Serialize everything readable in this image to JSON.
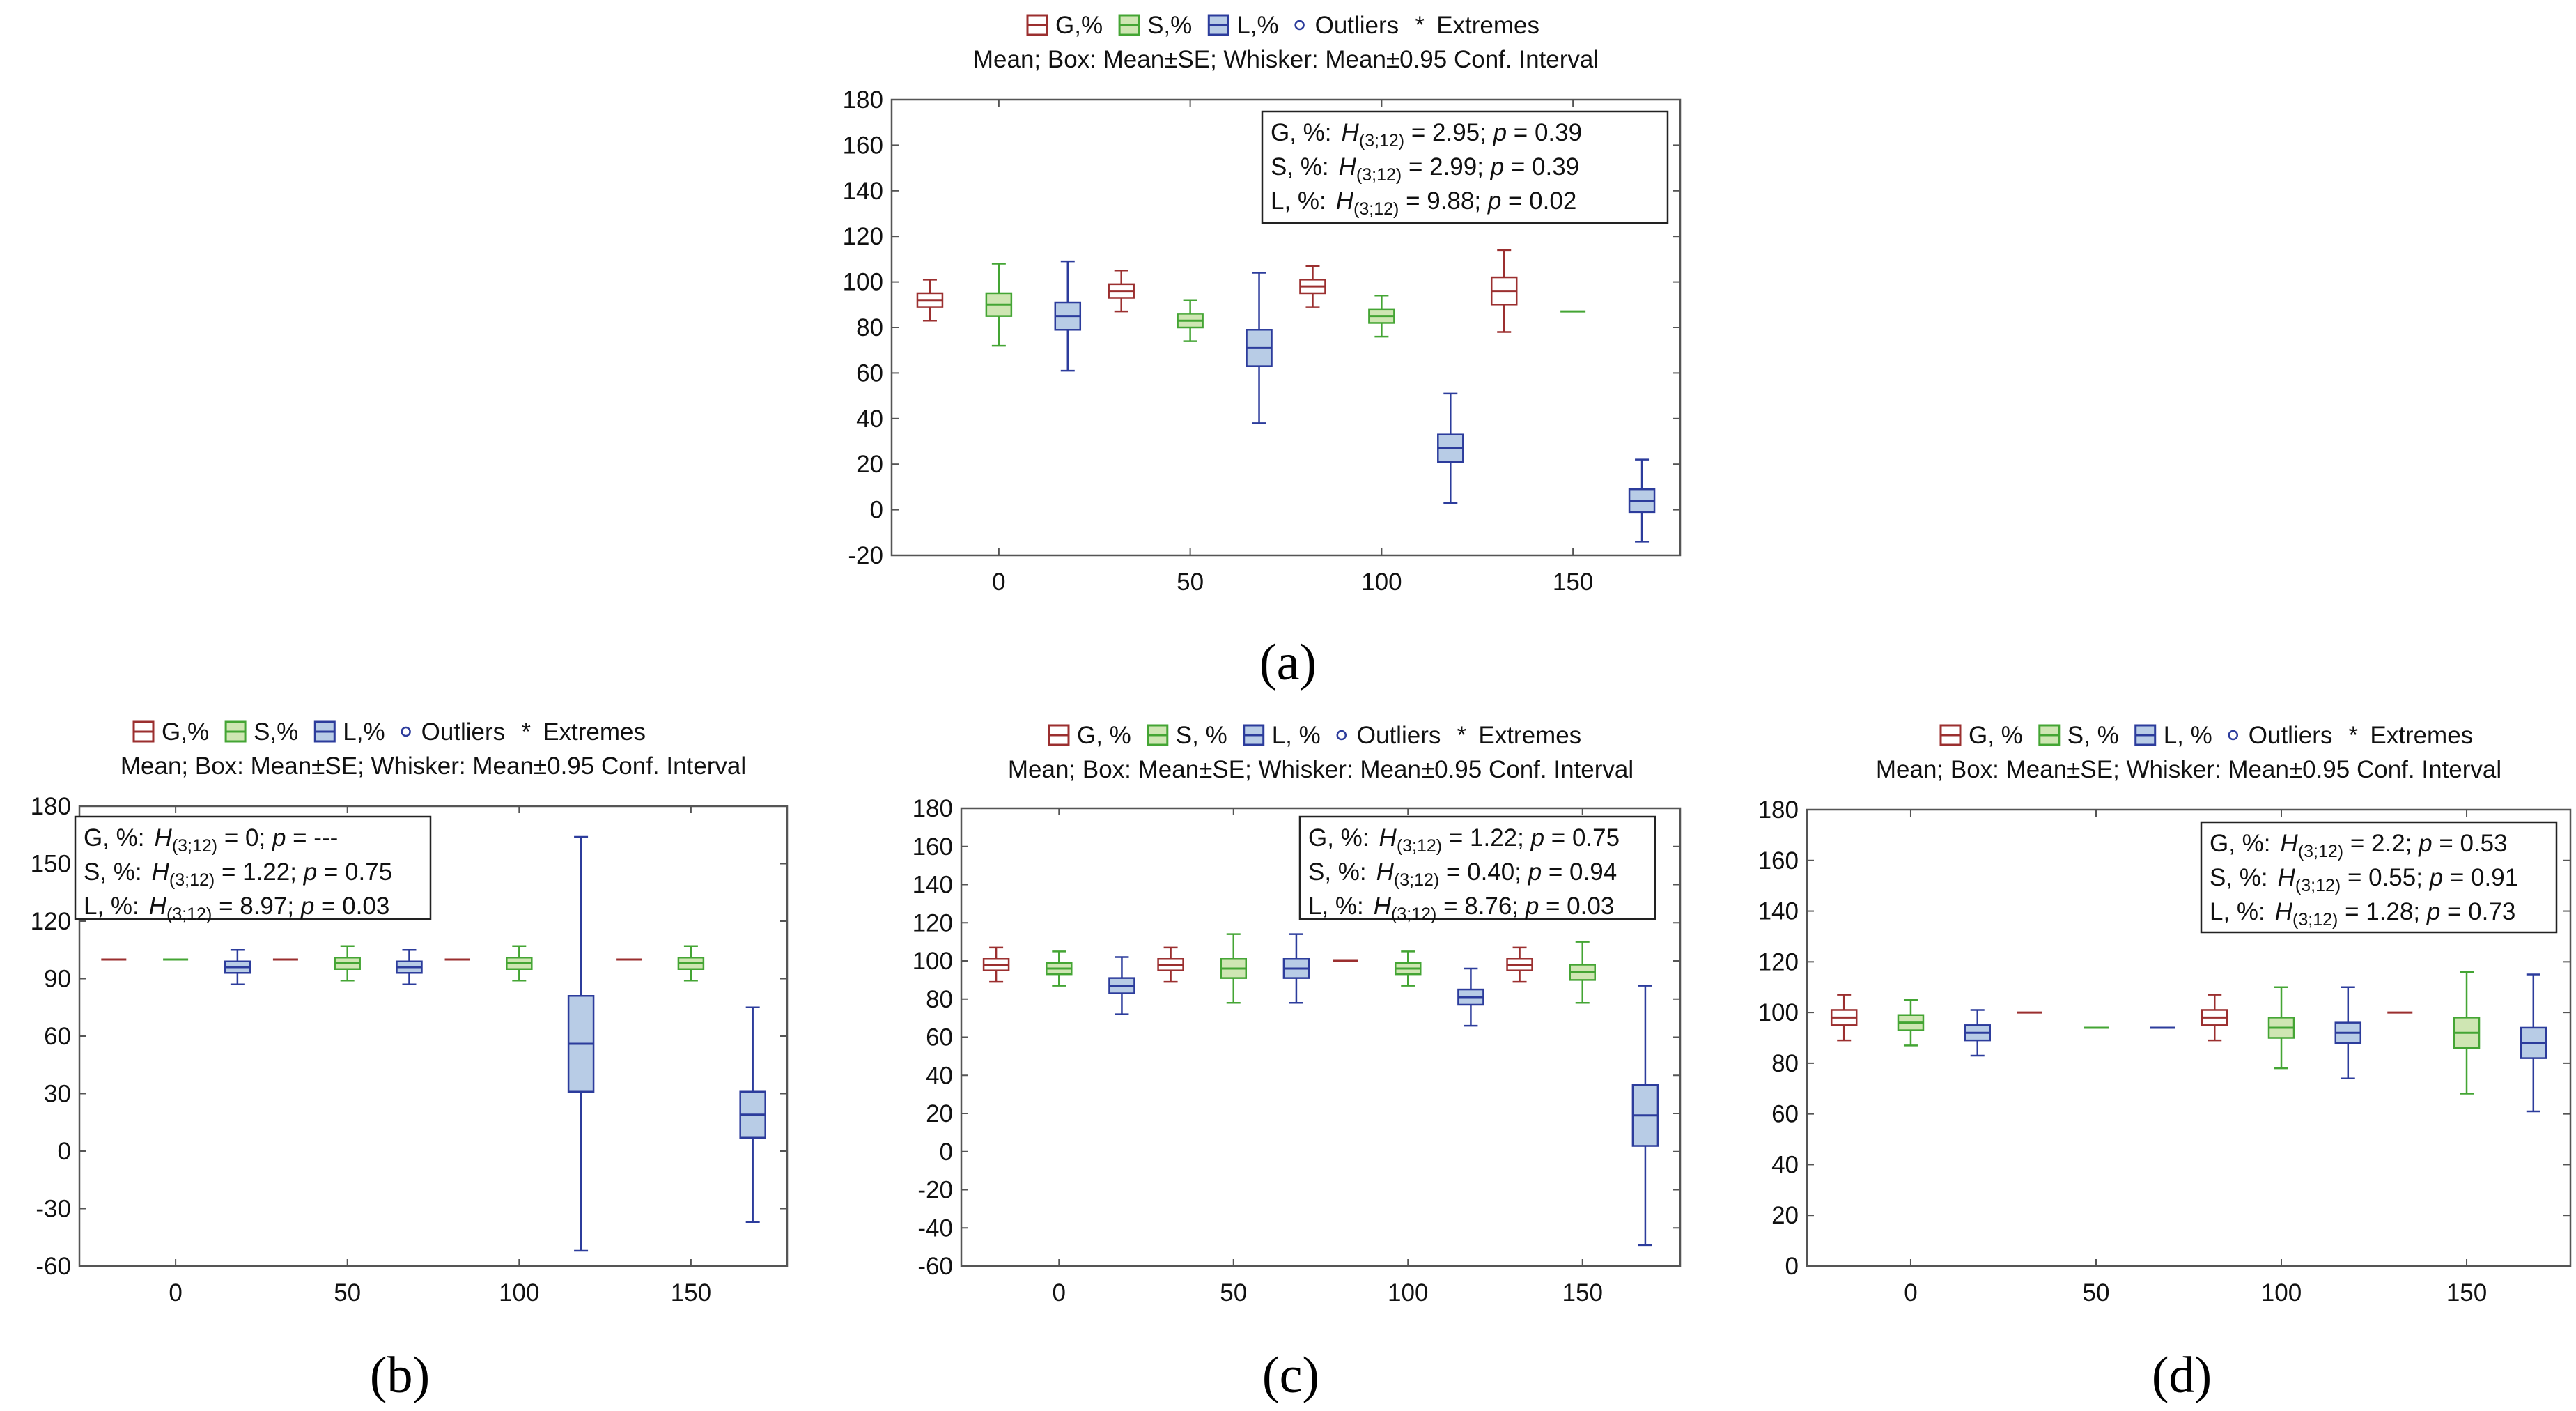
{
  "figure": {
    "labels": [
      "(a)",
      "(b)",
      "(c)",
      "(d)"
    ]
  },
  "colors": {
    "G": {
      "stroke": "#9b2f2f",
      "fill": "#ffffff"
    },
    "S": {
      "stroke": "#44a534",
      "fill": "#cfe6b3"
    },
    "L": {
      "stroke": "#2c3c9c",
      "fill": "#b8cce6"
    }
  },
  "chart_data": [
    {
      "type": "box",
      "panel": "a",
      "legend": [
        "G,%",
        "S,%",
        "L,%",
        "Outliers",
        "Extremes"
      ],
      "subtitle": "Mean; Box: Mean±SE; Whisker: Mean±0.95 Conf. Interval",
      "ylim": [
        -20,
        180
      ],
      "yticks": [
        -20,
        0,
        20,
        40,
        60,
        80,
        100,
        120,
        140,
        160,
        180
      ],
      "xticks": [
        0,
        50,
        100,
        150
      ],
      "stats": [
        {
          "var": "G, %:",
          "h": "H",
          "sub": "(3;12)",
          "hval": " = 2.95; ",
          "p": "p",
          "pval": " = 0.39"
        },
        {
          "var": "S, %:",
          "h": "H",
          "sub": "(3;12)",
          "hval": " = 2.99; ",
          "p": "p",
          "pval": " = 0.39"
        },
        {
          "var": "L, %:",
          "h": "H",
          "sub": "(3;12)",
          "hval": " = 9.88; ",
          "p": "p",
          "pval": " = 0.02"
        }
      ],
      "series": [
        {
          "name": "G,%",
          "boxes": [
            {
              "x": 0,
              "mean": 92,
              "se": 3,
              "ci": 9
            },
            {
              "x": 50,
              "mean": 96,
              "se": 3,
              "ci": 9
            },
            {
              "x": 100,
              "mean": 98,
              "se": 3,
              "ci": 9
            },
            {
              "x": 150,
              "mean": 96,
              "se": 6,
              "ci": 18
            }
          ]
        },
        {
          "name": "S,%",
          "boxes": [
            {
              "x": 0,
              "mean": 90,
              "se": 5,
              "ci": 18
            },
            {
              "x": 50,
              "mean": 83,
              "se": 3,
              "ci": 9
            },
            {
              "x": 100,
              "mean": 85,
              "se": 3,
              "ci": 9
            },
            {
              "x": 150,
              "mean": 87,
              "se": 0,
              "ci": 0
            }
          ]
        },
        {
          "name": "L,%",
          "boxes": [
            {
              "x": 0,
              "mean": 85,
              "se": 6,
              "ci": 24
            },
            {
              "x": 50,
              "mean": 71,
              "se": 8,
              "ci": 33
            },
            {
              "x": 100,
              "mean": 27,
              "se": 6,
              "ci": 24
            },
            {
              "x": 150,
              "mean": 4,
              "se": 5,
              "ci": 18
            }
          ]
        }
      ]
    },
    {
      "type": "box",
      "panel": "b",
      "legend": [
        "G,%",
        "S,%",
        "L,%",
        "Outliers",
        "Extremes"
      ],
      "subtitle": "Mean; Box: Mean±SE; Whisker: Mean±0.95 Conf. Interval",
      "ylim": [
        -60,
        180
      ],
      "yticks": [
        -60,
        -30,
        0,
        30,
        60,
        90,
        120,
        150,
        180
      ],
      "xticks": [
        0,
        50,
        100,
        150
      ],
      "stats": [
        {
          "var": "G, %:",
          "h": "H",
          "sub": "(3;12)",
          "hval": " = 0; ",
          "p": "p",
          "pval": " = ---"
        },
        {
          "var": "S, %:",
          "h": "H",
          "sub": "(3;12)",
          "hval": " = 1.22; ",
          "p": "p",
          "pval": " = 0.75"
        },
        {
          "var": "L, %:",
          "h": "H",
          "sub": "(3;12)",
          "hval": " = 8.97; ",
          "p": "p",
          "pval": " = 0.03"
        }
      ],
      "series": [
        {
          "name": "G,%",
          "boxes": [
            {
              "x": 0,
              "mean": 100,
              "se": 0,
              "ci": 0
            },
            {
              "x": 50,
              "mean": 100,
              "se": 0,
              "ci": 0
            },
            {
              "x": 100,
              "mean": 100,
              "se": 0,
              "ci": 0
            },
            {
              "x": 150,
              "mean": 100,
              "se": 0,
              "ci": 0
            }
          ]
        },
        {
          "name": "S,%",
          "boxes": [
            {
              "x": 0,
              "mean": 100,
              "se": 0,
              "ci": 0
            },
            {
              "x": 50,
              "mean": 98,
              "se": 3,
              "ci": 9
            },
            {
              "x": 100,
              "mean": 98,
              "se": 3,
              "ci": 9
            },
            {
              "x": 150,
              "mean": 98,
              "se": 3,
              "ci": 9
            }
          ]
        },
        {
          "name": "L,%",
          "boxes": [
            {
              "x": 0,
              "mean": 96,
              "se": 3,
              "ci": 9
            },
            {
              "x": 50,
              "mean": 96,
              "se": 3,
              "ci": 9
            },
            {
              "x": 100,
              "mean": 56,
              "se": 25,
              "ci": 108
            },
            {
              "x": 150,
              "mean": 19,
              "se": 12,
              "ci": 56
            }
          ]
        }
      ]
    },
    {
      "type": "box",
      "panel": "c",
      "legend": [
        "G, %",
        "S, %",
        "L, %",
        "Outliers",
        "Extremes"
      ],
      "subtitle": "Mean; Box: Mean±SE; Whisker: Mean±0.95 Conf. Interval",
      "ylim": [
        -60,
        180
      ],
      "yticks": [
        -60,
        -40,
        -20,
        0,
        20,
        40,
        60,
        80,
        100,
        120,
        140,
        160,
        180
      ],
      "xticks": [
        0,
        50,
        100,
        150
      ],
      "stats": [
        {
          "var": "G, %:",
          "h": "H",
          "sub": "(3;12)",
          "hval": " = 1.22; ",
          "p": "p",
          "pval": " = 0.75"
        },
        {
          "var": "S, %:",
          "h": "H",
          "sub": "(3;12)",
          "hval": " = 0.40; ",
          "p": "p",
          "pval": " = 0.94"
        },
        {
          "var": "L, %:",
          "h": "H",
          "sub": "(3;12)",
          "hval": " = 8.76; ",
          "p": "p",
          "pval": " = 0.03"
        }
      ],
      "series": [
        {
          "name": "G, %",
          "boxes": [
            {
              "x": 0,
              "mean": 98,
              "se": 3,
              "ci": 9
            },
            {
              "x": 50,
              "mean": 98,
              "se": 3,
              "ci": 9
            },
            {
              "x": 100,
              "mean": 100,
              "se": 0,
              "ci": 0
            },
            {
              "x": 150,
              "mean": 98,
              "se": 3,
              "ci": 9
            }
          ]
        },
        {
          "name": "S, %",
          "boxes": [
            {
              "x": 0,
              "mean": 96,
              "se": 3,
              "ci": 9
            },
            {
              "x": 50,
              "mean": 96,
              "se": 5,
              "ci": 18
            },
            {
              "x": 100,
              "mean": 96,
              "se": 3,
              "ci": 9
            },
            {
              "x": 150,
              "mean": 94,
              "se": 4,
              "ci": 16
            }
          ]
        },
        {
          "name": "L, %",
          "boxes": [
            {
              "x": 0,
              "mean": 87,
              "se": 4,
              "ci": 15
            },
            {
              "x": 50,
              "mean": 96,
              "se": 5,
              "ci": 18
            },
            {
              "x": 100,
              "mean": 81,
              "se": 4,
              "ci": 15
            },
            {
              "x": 150,
              "mean": 19,
              "se": 16,
              "ci": 68
            }
          ]
        }
      ]
    },
    {
      "type": "box",
      "panel": "d",
      "legend": [
        "G, %",
        "S, %",
        "L, %",
        "Outliers",
        "Extremes"
      ],
      "subtitle": "Mean; Box: Mean±SE; Whisker: Mean±0.95 Conf. Interval",
      "ylim": [
        0,
        180
      ],
      "yticks": [
        0,
        20,
        40,
        60,
        80,
        100,
        120,
        140,
        160,
        180
      ],
      "xticks": [
        0,
        50,
        100,
        150
      ],
      "stats": [
        {
          "var": "G, %:",
          "h": "H",
          "sub": "(3;12)",
          "hval": " = 2.2; ",
          "p": "p",
          "pval": " = 0.53"
        },
        {
          "var": "S, %:",
          "h": "H",
          "sub": "(3;12)",
          "hval": " = 0.55; ",
          "p": "p",
          "pval": " = 0.91"
        },
        {
          "var": "L, %:",
          "h": "H",
          "sub": "(3;12)",
          "hval": " = 1.28; ",
          "p": "p",
          "pval": " = 0.73"
        }
      ],
      "series": [
        {
          "name": "G, %",
          "boxes": [
            {
              "x": 0,
              "mean": 98,
              "se": 3,
              "ci": 9
            },
            {
              "x": 50,
              "mean": 100,
              "se": 0,
              "ci": 0
            },
            {
              "x": 100,
              "mean": 98,
              "se": 3,
              "ci": 9
            },
            {
              "x": 150,
              "mean": 100,
              "se": 0,
              "ci": 0
            }
          ]
        },
        {
          "name": "S, %",
          "boxes": [
            {
              "x": 0,
              "mean": 96,
              "se": 3,
              "ci": 9
            },
            {
              "x": 50,
              "mean": 94,
              "se": 0,
              "ci": 0
            },
            {
              "x": 100,
              "mean": 94,
              "se": 4,
              "ci": 16
            },
            {
              "x": 150,
              "mean": 92,
              "se": 6,
              "ci": 24
            }
          ]
        },
        {
          "name": "L, %",
          "boxes": [
            {
              "x": 0,
              "mean": 92,
              "se": 3,
              "ci": 9
            },
            {
              "x": 50,
              "mean": 94,
              "se": 0,
              "ci": 0
            },
            {
              "x": 100,
              "mean": 92,
              "se": 4,
              "ci": 18
            },
            {
              "x": 150,
              "mean": 88,
              "se": 6,
              "ci": 27
            }
          ]
        }
      ]
    }
  ]
}
